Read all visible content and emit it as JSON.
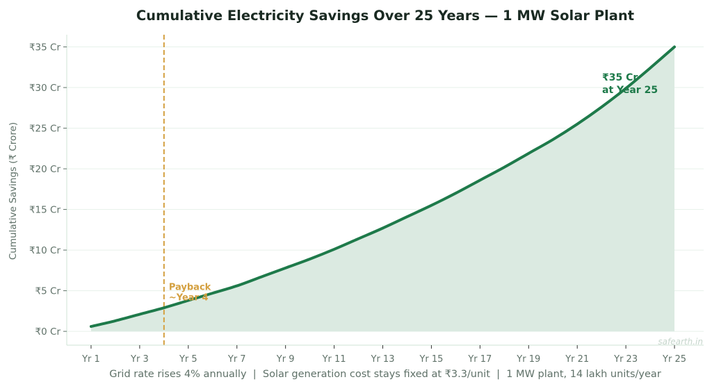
{
  "chart_data": {
    "type": "area",
    "title": "Cumulative Electricity Savings Over 25 Years — 1 MW Solar Plant",
    "xlabel": "Grid rate rises 4% annually  |  Solar generation cost stays fixed at ₹3.3/unit  |  1 MW plant, 14 lakh units/year",
    "ylabel": "Cumulative Savings (₹ Crore)",
    "x": [
      1,
      2,
      3,
      4,
      5,
      6,
      7,
      8,
      9,
      10,
      11,
      12,
      13,
      14,
      15,
      16,
      17,
      18,
      19,
      20,
      21,
      22,
      23,
      24,
      25
    ],
    "values": [
      0.6,
      1.3,
      2.1,
      2.9,
      3.8,
      4.7,
      5.6,
      6.7,
      7.8,
      8.9,
      10.1,
      11.4,
      12.7,
      14.1,
      15.5,
      17.0,
      18.6,
      20.2,
      21.9,
      23.6,
      25.5,
      27.6,
      29.9,
      32.4,
      35.0
    ],
    "xlim": [
      0,
      26.2
    ],
    "ylim": [
      -1.7,
      36.5
    ],
    "xticks": [
      1,
      3,
      5,
      7,
      9,
      11,
      13,
      15,
      17,
      19,
      21,
      23,
      25
    ],
    "xtick_labels": [
      "Yr 1",
      "Yr 3",
      "Yr 5",
      "Yr 7",
      "Yr 9",
      "Yr 11",
      "Yr 13",
      "Yr 15",
      "Yr 17",
      "Yr 19",
      "Yr 21",
      "Yr 23",
      "Yr 25"
    ],
    "yticks": [
      0,
      5,
      10,
      15,
      20,
      25,
      30,
      35
    ],
    "ytick_labels": [
      "₹0 Cr",
      "₹5 Cr",
      "₹10 Cr",
      "₹15 Cr",
      "₹20 Cr",
      "₹25 Cr",
      "₹30 Cr",
      "₹35 Cr"
    ],
    "grid": "horizontal",
    "payback": {
      "x": 4,
      "label_line1": "Payback",
      "label_line2": "~Year 4",
      "color": "#d4a040"
    },
    "end_annotation": {
      "line1": "₹35 Cr",
      "line2": "at Year 25"
    },
    "watermark": "safearth.in",
    "colors": {
      "line": "#1e7a4a",
      "fill": "#dbeae1",
      "text": "#5f7168",
      "title": "#1a2a22"
    }
  }
}
